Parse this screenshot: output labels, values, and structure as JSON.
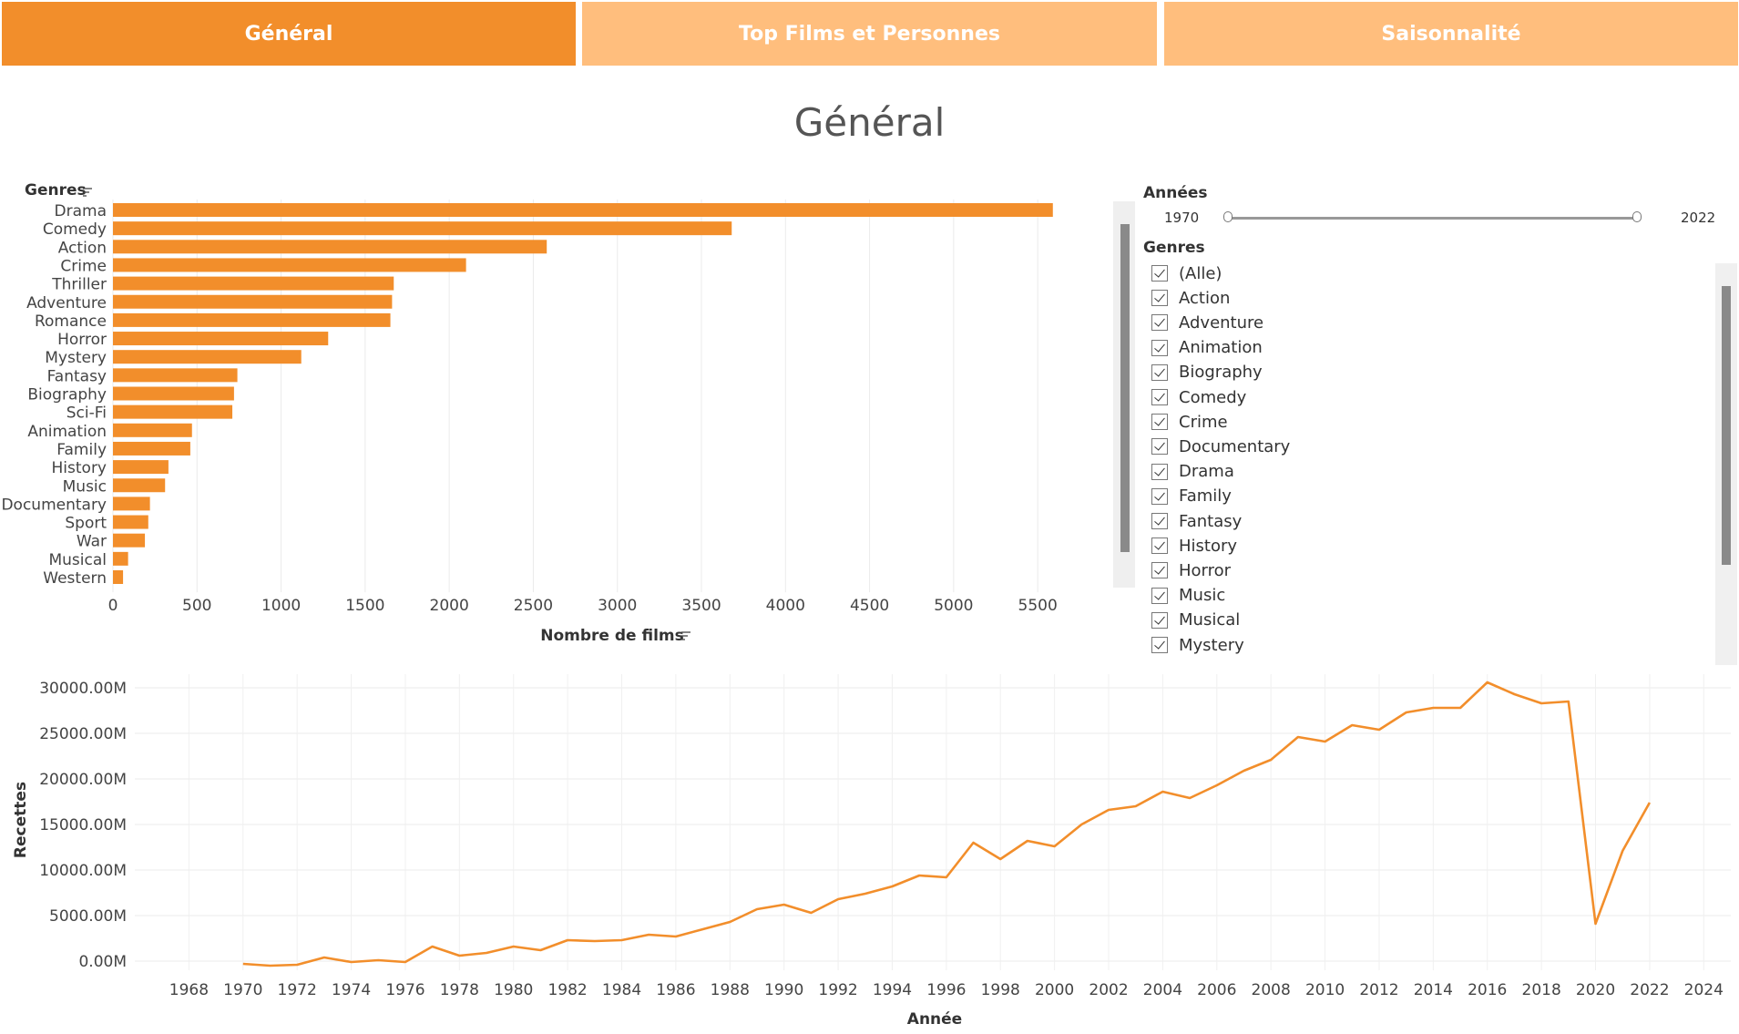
{
  "tabs": [
    {
      "label": "Général"
    },
    {
      "label": "Top Films et Personnes"
    },
    {
      "label": "Saisonnalité"
    }
  ],
  "page_title": "Général",
  "filters": {
    "years": {
      "title": "Années",
      "min": "1970",
      "max": "2022"
    },
    "genres": {
      "title": "Genres",
      "items": [
        "(Alle)",
        "Action",
        "Adventure",
        "Animation",
        "Biography",
        "Comedy",
        "Crime",
        "Documentary",
        "Drama",
        "Family",
        "Fantasy",
        "History",
        "Horror",
        "Music",
        "Musical",
        "Mystery"
      ]
    }
  },
  "colors": {
    "accent": "#f28e2b",
    "tab_inactive": "#ffbe7d",
    "grid": "#ebebeb"
  },
  "icons": {
    "sort": "sort-icon"
  },
  "chart_data": [
    {
      "type": "bar",
      "orientation": "horizontal",
      "ylabel": "Genres",
      "xlabel": "Nombre de films",
      "categories": [
        "Drama",
        "Comedy",
        "Action",
        "Crime",
        "Thriller",
        "Adventure",
        "Romance",
        "Horror",
        "Mystery",
        "Fantasy",
        "Biography",
        "Sci-Fi",
        "Animation",
        "Family",
        "History",
        "Music",
        "Documentary",
        "Sport",
        "War",
        "Musical",
        "Western"
      ],
      "values": [
        5590,
        3680,
        2580,
        2100,
        1670,
        1660,
        1650,
        1280,
        1120,
        740,
        720,
        710,
        470,
        460,
        330,
        310,
        220,
        210,
        190,
        90,
        60
      ],
      "xlim": [
        0,
        5900
      ],
      "xticks": [
        0,
        500,
        1000,
        1500,
        2000,
        2500,
        3000,
        3500,
        4000,
        4500,
        5000,
        5500
      ],
      "grid": "vertical"
    },
    {
      "type": "line",
      "xlabel": "Année",
      "ylabel": "Recettes",
      "x": [
        1970,
        1971,
        1972,
        1973,
        1974,
        1975,
        1976,
        1977,
        1978,
        1979,
        1980,
        1981,
        1982,
        1983,
        1984,
        1985,
        1986,
        1987,
        1988,
        1989,
        1990,
        1991,
        1992,
        1993,
        1994,
        1995,
        1996,
        1997,
        1998,
        1999,
        2000,
        2001,
        2002,
        2003,
        2004,
        2005,
        2006,
        2007,
        2008,
        2009,
        2010,
        2011,
        2012,
        2013,
        2014,
        2015,
        2016,
        2017,
        2018,
        2019,
        2020,
        2021,
        2022
      ],
      "y": [
        -300,
        -500,
        -400,
        400,
        -100,
        100,
        -100,
        1600,
        600,
        900,
        1600,
        1200,
        2300,
        2200,
        2300,
        2900,
        2700,
        3500,
        4300,
        5700,
        6200,
        5300,
        6800,
        7400,
        8200,
        9400,
        9200,
        13000,
        11200,
        13200,
        12600,
        15000,
        16600,
        17000,
        18600,
        17900,
        19300,
        20900,
        22100,
        24600,
        24100,
        25900,
        25400,
        27300,
        27800,
        27800,
        30600,
        29300,
        28300,
        28500,
        4100,
        12100,
        17400
      ],
      "xlim": [
        1966,
        2025
      ],
      "xticks": [
        1968,
        1970,
        1972,
        1974,
        1976,
        1978,
        1980,
        1982,
        1984,
        1986,
        1988,
        1990,
        1992,
        1994,
        1996,
        1998,
        2000,
        2002,
        2004,
        2006,
        2008,
        2010,
        2012,
        2014,
        2016,
        2018,
        2020,
        2022,
        2024
      ],
      "ylim": [
        -1000,
        31500
      ],
      "yticks": [
        0,
        5000,
        10000,
        15000,
        20000,
        25000,
        30000
      ],
      "ytick_labels": [
        "0.00M",
        "5000.00M",
        "10000.00M",
        "15000.00M",
        "20000.00M",
        "25000.00M",
        "30000.00M"
      ],
      "grid": "both"
    }
  ]
}
